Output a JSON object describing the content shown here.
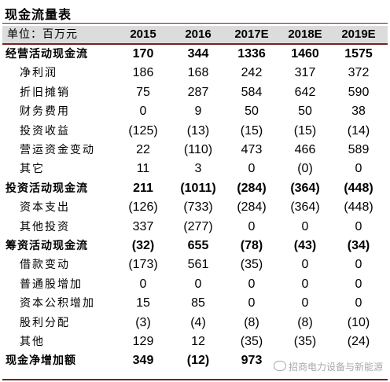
{
  "title": "现金流量表",
  "header": {
    "unit": "单位：百万元",
    "years": [
      "2015",
      "2016",
      "2017E",
      "2018E",
      "2019E"
    ]
  },
  "rows": [
    {
      "label": "经营活动现金流",
      "bold": true,
      "indent": false,
      "values": [
        "170",
        "344",
        "1336",
        "1460",
        "1575"
      ]
    },
    {
      "label": "净利润",
      "bold": false,
      "indent": true,
      "values": [
        "186",
        "168",
        "242",
        "317",
        "372"
      ]
    },
    {
      "label": "折旧摊销",
      "bold": false,
      "indent": true,
      "values": [
        "75",
        "287",
        "584",
        "642",
        "590"
      ]
    },
    {
      "label": "财务费用",
      "bold": false,
      "indent": true,
      "values": [
        "0",
        "9",
        "50",
        "50",
        "38"
      ]
    },
    {
      "label": "投资收益",
      "bold": false,
      "indent": true,
      "values": [
        "(125)",
        "(13)",
        "(15)",
        "(15)",
        "(14)"
      ]
    },
    {
      "label": "营运资金变动",
      "bold": false,
      "indent": true,
      "values": [
        "22",
        "(110)",
        "473",
        "466",
        "589"
      ]
    },
    {
      "label": "其它",
      "bold": false,
      "indent": true,
      "values": [
        "11",
        "3",
        "0",
        "(0)",
        "0"
      ]
    },
    {
      "label": "投资活动现金流",
      "bold": true,
      "indent": false,
      "values": [
        "211",
        "(1011)",
        "(284)",
        "(364)",
        "(448)"
      ]
    },
    {
      "label": "资本支出",
      "bold": false,
      "indent": true,
      "values": [
        "(126)",
        "(733)",
        "(284)",
        "(364)",
        "(448)"
      ]
    },
    {
      "label": "其他投资",
      "bold": false,
      "indent": true,
      "values": [
        "337",
        "(277)",
        "0",
        "0",
        "0"
      ]
    },
    {
      "label": "筹资活动现金流",
      "bold": true,
      "indent": false,
      "values": [
        "(32)",
        "655",
        "(78)",
        "(43)",
        "(34)"
      ]
    },
    {
      "label": "借款变动",
      "bold": false,
      "indent": true,
      "values": [
        "(173)",
        "561",
        "(35)",
        "0",
        "0"
      ]
    },
    {
      "label": "普通股增加",
      "bold": false,
      "indent": true,
      "values": [
        "0",
        "0",
        "0",
        "0",
        "0"
      ]
    },
    {
      "label": "资本公积增加",
      "bold": false,
      "indent": true,
      "values": [
        "15",
        "85",
        "0",
        "0",
        "0"
      ]
    },
    {
      "label": "股利分配",
      "bold": false,
      "indent": true,
      "values": [
        "(3)",
        "(4)",
        "(8)",
        "(8)",
        "(10)"
      ]
    },
    {
      "label": "其他",
      "bold": false,
      "indent": true,
      "values": [
        "129",
        "12",
        "(35)",
        "(35)",
        "(24)"
      ]
    },
    {
      "label": "现金净增加额",
      "bold": true,
      "indent": false,
      "values": [
        "349",
        "(12)",
        "973",
        "",
        ""
      ]
    }
  ],
  "watermark": "招商电力设备与新能源",
  "colors": {
    "rule": "#7a2222",
    "header_bg": "#dcdcdc"
  }
}
